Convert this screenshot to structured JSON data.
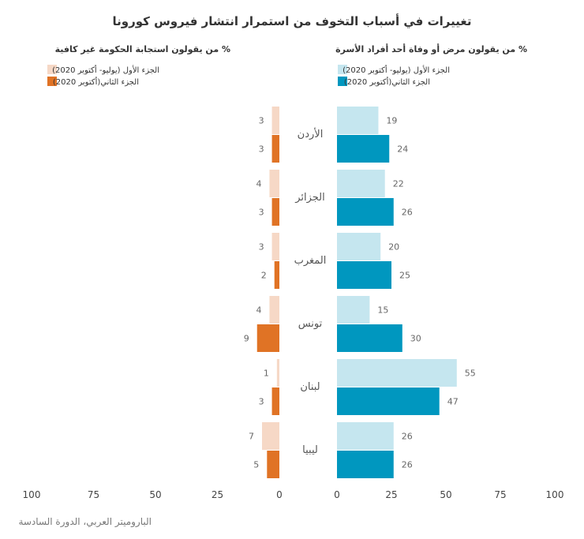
{
  "chart_data": {
    "type": "bar",
    "orientation": "horizontal",
    "layout": "butterfly",
    "title": "تغييرات في أسباب التخوف من استمرار انتشار فيروس كورونا",
    "source": "الباروميتر العربي، الدورة السادسة",
    "categories": [
      "الأردن",
      "الجزائر",
      "المغرب",
      "تونس",
      "لبنان",
      "ليبيا"
    ],
    "panels": [
      {
        "side": "right",
        "subtitle": "% من يقولون مرض أو وفاة أحد أفراد الأسرة",
        "xlim": [
          0,
          100
        ],
        "ticks": [
          "0",
          "25",
          "50",
          "75",
          "100"
        ],
        "tick_values": [
          0,
          25,
          50,
          75,
          100
        ],
        "series": [
          {
            "name": "الجزء الأول (يوليو- أكتوبر 2020)",
            "color": "#c5e6ef",
            "values": [
              19,
              22,
              20,
              15,
              55,
              26
            ]
          },
          {
            "name": "الجزء الثاني(أكتوبر 2020)",
            "color": "#0097bf",
            "values": [
              24,
              26,
              25,
              30,
              47,
              26
            ]
          }
        ]
      },
      {
        "side": "left",
        "subtitle": "% من يقولون استجابة الحكومة غير كافية",
        "xlim": [
          0,
          100
        ],
        "ticks": [
          "100",
          "75",
          "50",
          "25",
          "0"
        ],
        "tick_values": [
          100,
          75,
          50,
          25,
          0
        ],
        "series": [
          {
            "name": "الجزء الأول (يوليو- أكتوبر 2020)",
            "color": "#f6d8c6",
            "values": [
              3,
              4,
              3,
              4,
              1,
              7
            ]
          },
          {
            "name": "الجزء الثاني(أكتوبر 2020)",
            "color": "#e07325",
            "values": [
              3,
              3,
              2,
              9,
              3,
              5
            ]
          }
        ]
      }
    ]
  }
}
